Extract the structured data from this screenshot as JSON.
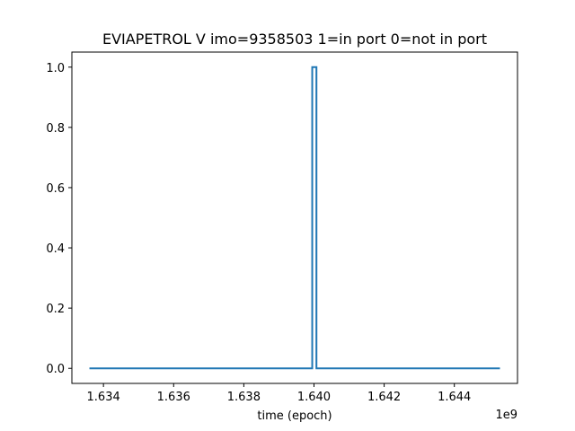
{
  "chart_data": {
    "type": "line",
    "drawstyle": "steps",
    "title": "EVIAPETROL V imo=9358503 1=in port 0=not in port",
    "xlabel": "time (epoch)",
    "ylabel": "",
    "x_offset_label": "1e9",
    "x_scale": 1000000000,
    "xlim": [
      1.6331,
      1.6458
    ],
    "ylim": [
      -0.05,
      1.05
    ],
    "x_ticks": [
      1.634,
      1.636,
      1.638,
      1.64,
      1.642,
      1.644
    ],
    "x_tick_labels": [
      "1.634",
      "1.636",
      "1.638",
      "1.640",
      "1.642",
      "1.644"
    ],
    "y_ticks": [
      0.0,
      0.2,
      0.4,
      0.6,
      0.8,
      1.0
    ],
    "y_tick_labels": [
      "0.0",
      "0.2",
      "0.4",
      "0.6",
      "0.8",
      "1.0"
    ],
    "grid": false,
    "series": [
      {
        "color": "#1f77b4",
        "x": [
          1.6336,
          1.63995,
          1.63995,
          1.64007,
          1.64007,
          1.6453
        ],
        "y": [
          0,
          0,
          1,
          1,
          0,
          0
        ]
      }
    ]
  }
}
